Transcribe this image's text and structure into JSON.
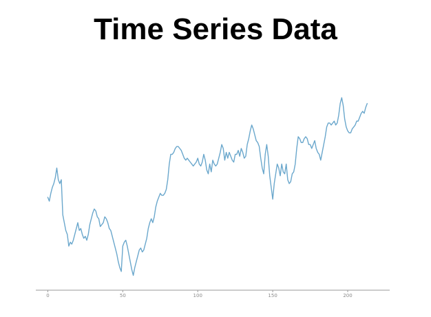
{
  "chart_data": {
    "type": "line",
    "title": "Time Series Data",
    "xlabel": "",
    "ylabel": "",
    "xlim": [
      -8,
      228
    ],
    "ylim": [
      0,
      100
    ],
    "x_ticks": [
      0,
      50,
      100,
      150,
      200
    ],
    "grid": false,
    "legend": "none",
    "line_color": "#6aa7cc",
    "axis_color": "#9a9a9a",
    "series": [
      {
        "points": [
          [
            0,
            43
          ],
          [
            1,
            41
          ],
          [
            2,
            45
          ],
          [
            3,
            48
          ],
          [
            4,
            50
          ],
          [
            5,
            53
          ],
          [
            6,
            58
          ],
          [
            7,
            52
          ],
          [
            8,
            50
          ],
          [
            9,
            52
          ],
          [
            10,
            34
          ],
          [
            11,
            30
          ],
          [
            12,
            26
          ],
          [
            13,
            24
          ],
          [
            14,
            18
          ],
          [
            15,
            20
          ],
          [
            16,
            19
          ],
          [
            17,
            21
          ],
          [
            18,
            24
          ],
          [
            19,
            27
          ],
          [
            20,
            30
          ],
          [
            21,
            26
          ],
          [
            22,
            27
          ],
          [
            23,
            24
          ],
          [
            24,
            22
          ],
          [
            25,
            23
          ],
          [
            26,
            21
          ],
          [
            27,
            24
          ],
          [
            28,
            29
          ],
          [
            29,
            32
          ],
          [
            30,
            35
          ],
          [
            31,
            37
          ],
          [
            32,
            36
          ],
          [
            33,
            33
          ],
          [
            34,
            32
          ],
          [
            35,
            28
          ],
          [
            36,
            29
          ],
          [
            37,
            30
          ],
          [
            38,
            33
          ],
          [
            39,
            32
          ],
          [
            40,
            30
          ],
          [
            41,
            27
          ],
          [
            42,
            26
          ],
          [
            43,
            23
          ],
          [
            44,
            20
          ],
          [
            45,
            17
          ],
          [
            46,
            14
          ],
          [
            47,
            10
          ],
          [
            48,
            7
          ],
          [
            49,
            5
          ],
          [
            50,
            18
          ],
          [
            51,
            20
          ],
          [
            52,
            21
          ],
          [
            53,
            18
          ],
          [
            54,
            14
          ],
          [
            55,
            10
          ],
          [
            56,
            6
          ],
          [
            57,
            3
          ],
          [
            58,
            7
          ],
          [
            59,
            10
          ],
          [
            60,
            13
          ],
          [
            61,
            16
          ],
          [
            62,
            17
          ],
          [
            63,
            15
          ],
          [
            64,
            16
          ],
          [
            65,
            19
          ],
          [
            66,
            22
          ],
          [
            67,
            27
          ],
          [
            68,
            30
          ],
          [
            69,
            32
          ],
          [
            70,
            30
          ],
          [
            71,
            33
          ],
          [
            72,
            38
          ],
          [
            73,
            41
          ],
          [
            74,
            43
          ],
          [
            75,
            45
          ],
          [
            76,
            44
          ],
          [
            77,
            44
          ],
          [
            78,
            45
          ],
          [
            79,
            47
          ],
          [
            80,
            52
          ],
          [
            81,
            60
          ],
          [
            82,
            65
          ],
          [
            83,
            65
          ],
          [
            84,
            66
          ],
          [
            85,
            68
          ],
          [
            86,
            69
          ],
          [
            87,
            69
          ],
          [
            88,
            68
          ],
          [
            89,
            67
          ],
          [
            90,
            65
          ],
          [
            91,
            63
          ],
          [
            92,
            62
          ],
          [
            93,
            63
          ],
          [
            94,
            62
          ],
          [
            95,
            61
          ],
          [
            96,
            60
          ],
          [
            97,
            59
          ],
          [
            98,
            60
          ],
          [
            99,
            61
          ],
          [
            100,
            63
          ],
          [
            101,
            60
          ],
          [
            102,
            59
          ],
          [
            103,
            61
          ],
          [
            104,
            65
          ],
          [
            105,
            62
          ],
          [
            106,
            57
          ],
          [
            107,
            55
          ],
          [
            108,
            60
          ],
          [
            109,
            56
          ],
          [
            110,
            62
          ],
          [
            111,
            60
          ],
          [
            112,
            59
          ],
          [
            113,
            60
          ],
          [
            114,
            63
          ],
          [
            115,
            66
          ],
          [
            116,
            70
          ],
          [
            117,
            68
          ],
          [
            118,
            62
          ],
          [
            119,
            66
          ],
          [
            120,
            63
          ],
          [
            121,
            66
          ],
          [
            122,
            64
          ],
          [
            123,
            62
          ],
          [
            124,
            61
          ],
          [
            125,
            65
          ],
          [
            126,
            65
          ],
          [
            127,
            67
          ],
          [
            128,
            64
          ],
          [
            129,
            68
          ],
          [
            130,
            66
          ],
          [
            131,
            63
          ],
          [
            132,
            64
          ],
          [
            133,
            70
          ],
          [
            134,
            73
          ],
          [
            135,
            77
          ],
          [
            136,
            80
          ],
          [
            137,
            78
          ],
          [
            138,
            75
          ],
          [
            139,
            72
          ],
          [
            140,
            71
          ],
          [
            141,
            69
          ],
          [
            142,
            63
          ],
          [
            143,
            58
          ],
          [
            144,
            55
          ],
          [
            145,
            65
          ],
          [
            146,
            70
          ],
          [
            147,
            64
          ],
          [
            148,
            54
          ],
          [
            149,
            48
          ],
          [
            150,
            42
          ],
          [
            151,
            50
          ],
          [
            152,
            55
          ],
          [
            153,
            60
          ],
          [
            154,
            58
          ],
          [
            155,
            54
          ],
          [
            156,
            60
          ],
          [
            157,
            56
          ],
          [
            158,
            55
          ],
          [
            159,
            60
          ],
          [
            160,
            52
          ],
          [
            161,
            50
          ],
          [
            162,
            51
          ],
          [
            163,
            55
          ],
          [
            164,
            56
          ],
          [
            165,
            60
          ],
          [
            166,
            68
          ],
          [
            167,
            74
          ],
          [
            168,
            73
          ],
          [
            169,
            71
          ],
          [
            170,
            71
          ],
          [
            171,
            73
          ],
          [
            172,
            74
          ],
          [
            173,
            73
          ],
          [
            174,
            70
          ],
          [
            175,
            70
          ],
          [
            176,
            68
          ],
          [
            177,
            70
          ],
          [
            178,
            72
          ],
          [
            179,
            68
          ],
          [
            180,
            66
          ],
          [
            181,
            65
          ],
          [
            182,
            62
          ],
          [
            183,
            66
          ],
          [
            184,
            70
          ],
          [
            185,
            74
          ],
          [
            186,
            79
          ],
          [
            187,
            81
          ],
          [
            188,
            81
          ],
          [
            189,
            80
          ],
          [
            190,
            81
          ],
          [
            191,
            82
          ],
          [
            192,
            80
          ],
          [
            193,
            81
          ],
          [
            194,
            85
          ],
          [
            195,
            91
          ],
          [
            196,
            94
          ],
          [
            197,
            90
          ],
          [
            198,
            83
          ],
          [
            199,
            79
          ],
          [
            200,
            77
          ],
          [
            201,
            76
          ],
          [
            202,
            76
          ],
          [
            203,
            78
          ],
          [
            204,
            79
          ],
          [
            205,
            80
          ],
          [
            206,
            82
          ],
          [
            207,
            82
          ],
          [
            208,
            84
          ],
          [
            209,
            86
          ],
          [
            210,
            87
          ],
          [
            211,
            86
          ],
          [
            212,
            89
          ],
          [
            213,
            91
          ]
        ]
      }
    ]
  }
}
